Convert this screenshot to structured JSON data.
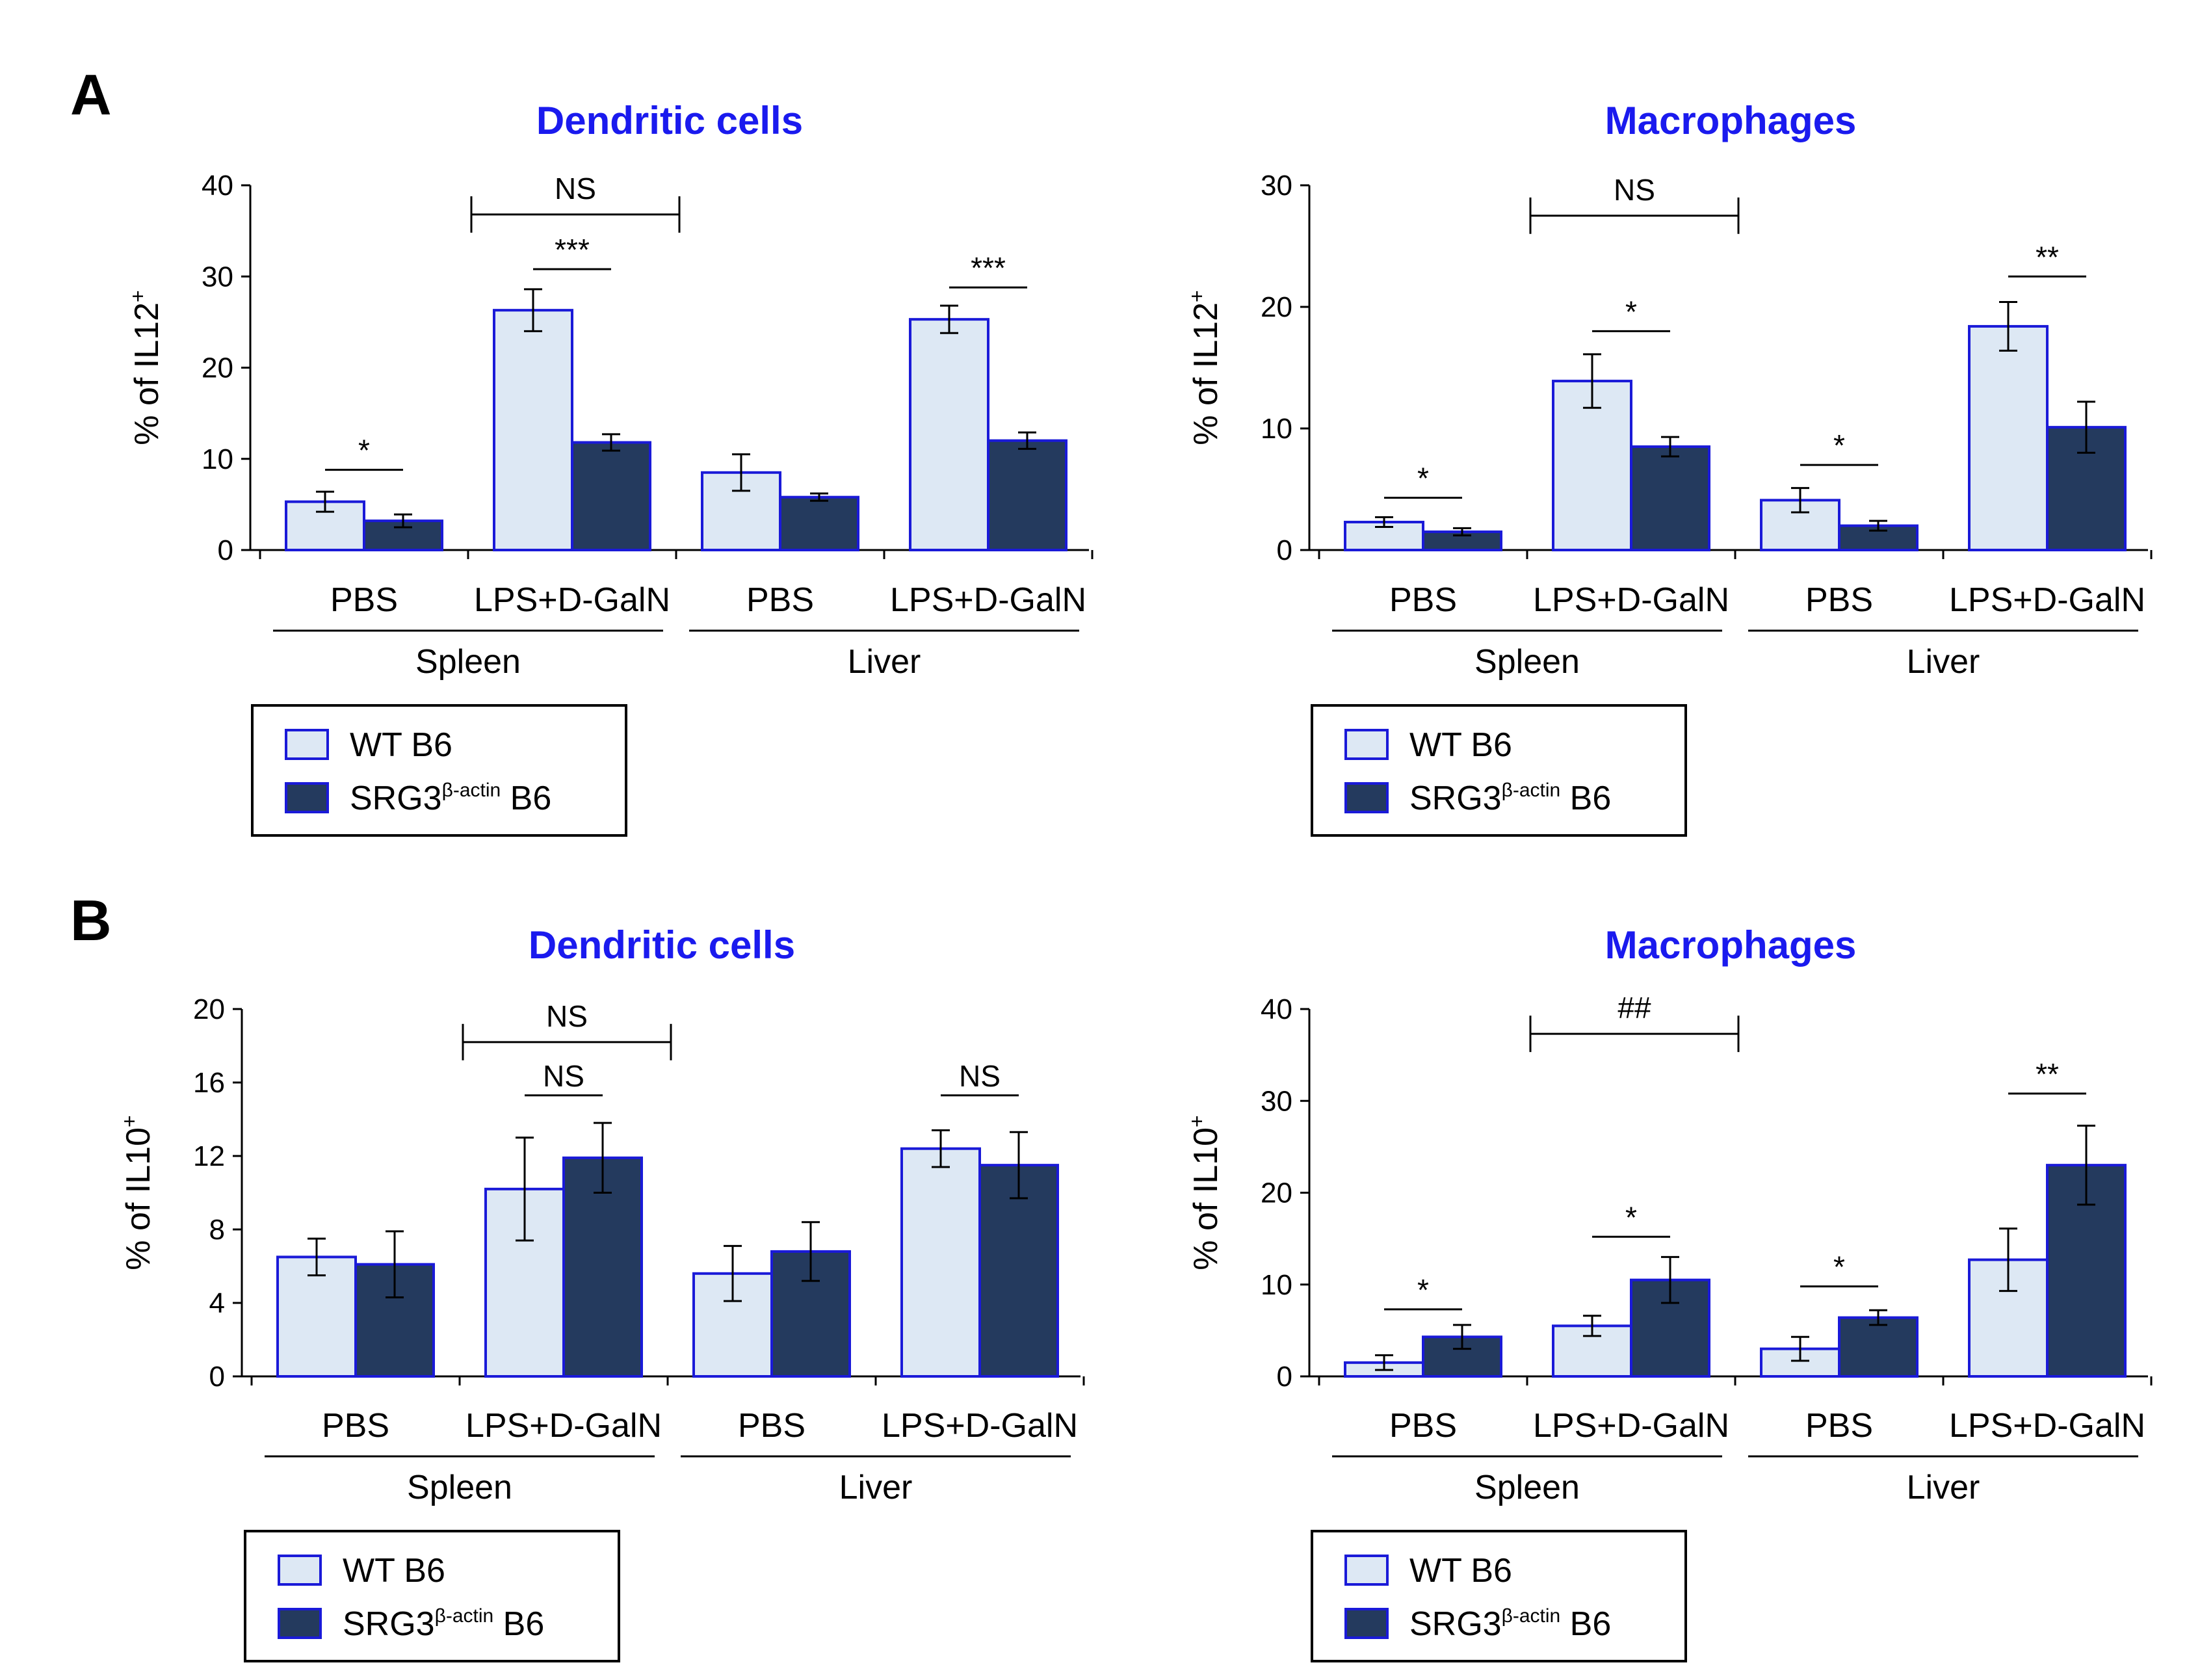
{
  "panels": [
    {
      "label": "A"
    },
    {
      "label": "B"
    }
  ],
  "legend": {
    "wt_label": "WT B6",
    "ko_base": "SRG3",
    "ko_sup": "β-actin",
    "ko_suffix": " B6"
  },
  "colors": {
    "wt_fill": "#dde8f4",
    "ko_fill": "#243a5e",
    "bar_edge": "#1a1ad8",
    "title": "#1a1aee"
  },
  "chart_data": [
    {
      "type": "bar",
      "panel": "A",
      "title": "Dendritic cells",
      "ylabel": "% of IL12+",
      "ylabel_base": "% of IL12",
      "ylabel_sup": "+",
      "ylim": [
        0,
        40
      ],
      "yticks": [
        0,
        10,
        20,
        30,
        40
      ],
      "categories": [
        "PBS",
        "LPS+D-GalN",
        "PBS",
        "LPS+D-GalN"
      ],
      "groups": [
        {
          "name": "Spleen",
          "categories": [
            0,
            1
          ]
        },
        {
          "name": "Liver",
          "categories": [
            2,
            3
          ]
        }
      ],
      "series": [
        {
          "name": "WT B6",
          "values": [
            5.3,
            26.3,
            8.5,
            25.3
          ],
          "errors": [
            1.1,
            2.3,
            2.0,
            1.5
          ]
        },
        {
          "name": "SRG3β-actin B6",
          "values": [
            3.2,
            11.8,
            5.8,
            12.0
          ],
          "errors": [
            0.7,
            0.9,
            0.4,
            0.9
          ]
        }
      ],
      "annotations": [
        {
          "text": "*",
          "type": "pair",
          "category": 0,
          "y": 8.8
        },
        {
          "text": "***",
          "type": "pair",
          "category": 1,
          "y": 30.8
        },
        {
          "text": "***",
          "type": "pair",
          "category": 3,
          "y": 28.8
        },
        {
          "text": "NS",
          "type": "bracket",
          "from": 1,
          "to": 2,
          "y": 36.8
        }
      ]
    },
    {
      "type": "bar",
      "panel": "A",
      "title": "Macrophages",
      "ylabel": "% of IL12+",
      "ylabel_base": "% of IL12",
      "ylabel_sup": "+",
      "ylim": [
        0,
        30
      ],
      "yticks": [
        0,
        10,
        20,
        30
      ],
      "categories": [
        "PBS",
        "LPS+D-GalN",
        "PBS",
        "LPS+D-GalN"
      ],
      "groups": [
        {
          "name": "Spleen",
          "categories": [
            0,
            1
          ]
        },
        {
          "name": "Liver",
          "categories": [
            2,
            3
          ]
        }
      ],
      "series": [
        {
          "name": "WT B6",
          "values": [
            2.3,
            13.9,
            4.1,
            18.4
          ],
          "errors": [
            0.4,
            2.2,
            1.0,
            2.0
          ]
        },
        {
          "name": "SRG3β-actin B6",
          "values": [
            1.5,
            8.5,
            2.0,
            10.1
          ],
          "errors": [
            0.3,
            0.8,
            0.4,
            2.1
          ]
        }
      ],
      "annotations": [
        {
          "text": "*",
          "type": "pair",
          "category": 0,
          "y": 4.3
        },
        {
          "text": "*",
          "type": "pair",
          "category": 1,
          "y": 18.0
        },
        {
          "text": "*",
          "type": "pair",
          "category": 2,
          "y": 7.0
        },
        {
          "text": "**",
          "type": "pair",
          "category": 3,
          "y": 22.5
        },
        {
          "text": "NS",
          "type": "bracket",
          "from": 1,
          "to": 2,
          "y": 27.5
        }
      ]
    },
    {
      "type": "bar",
      "panel": "B",
      "title": "Dendritic cells",
      "ylabel": "% of IL10+",
      "ylabel_base": "% of IL10",
      "ylabel_sup": "+",
      "ylim": [
        0,
        20
      ],
      "yticks": [
        0,
        4,
        8,
        12,
        16,
        20
      ],
      "categories": [
        "PBS",
        "LPS+D-GalN",
        "PBS",
        "LPS+D-GalN"
      ],
      "groups": [
        {
          "name": "Spleen",
          "categories": [
            0,
            1
          ]
        },
        {
          "name": "Liver",
          "categories": [
            2,
            3
          ]
        }
      ],
      "series": [
        {
          "name": "WT B6",
          "values": [
            6.5,
            10.2,
            5.6,
            12.4
          ],
          "errors": [
            1.0,
            2.8,
            1.5,
            1.0
          ]
        },
        {
          "name": "SRG3β-actin B6",
          "values": [
            6.1,
            11.9,
            6.8,
            11.5
          ],
          "errors": [
            1.8,
            1.9,
            1.6,
            1.8
          ]
        }
      ],
      "annotations": [
        {
          "text": "NS",
          "type": "pair",
          "category": 1,
          "y": 15.3
        },
        {
          "text": "NS",
          "type": "pair",
          "category": 3,
          "y": 15.3
        },
        {
          "text": "NS",
          "type": "bracket",
          "from": 1,
          "to": 2,
          "y": 18.2
        }
      ]
    },
    {
      "type": "bar",
      "panel": "B",
      "title": "Macrophages",
      "ylabel": "% of IL10+",
      "ylabel_base": "% of IL10",
      "ylabel_sup": "+",
      "ylim": [
        0,
        40
      ],
      "yticks": [
        0,
        10,
        20,
        30,
        40
      ],
      "categories": [
        "PBS",
        "LPS+D-GalN",
        "PBS",
        "LPS+D-GalN"
      ],
      "groups": [
        {
          "name": "Spleen",
          "categories": [
            0,
            1
          ]
        },
        {
          "name": "Liver",
          "categories": [
            2,
            3
          ]
        }
      ],
      "series": [
        {
          "name": "WT B6",
          "values": [
            1.5,
            5.5,
            3.0,
            12.7
          ],
          "errors": [
            0.8,
            1.1,
            1.3,
            3.4
          ]
        },
        {
          "name": "SRG3β-actin B6",
          "values": [
            4.3,
            10.5,
            6.4,
            23.0
          ],
          "errors": [
            1.3,
            2.5,
            0.8,
            4.3
          ]
        }
      ],
      "annotations": [
        {
          "text": "*",
          "type": "pair",
          "category": 0,
          "y": 7.3
        },
        {
          "text": "*",
          "type": "pair",
          "category": 1,
          "y": 15.2
        },
        {
          "text": "*",
          "type": "pair",
          "category": 2,
          "y": 9.8
        },
        {
          "text": "**",
          "type": "pair",
          "category": 3,
          "y": 30.8
        },
        {
          "text": "##",
          "type": "bracket",
          "from": 1,
          "to": 2,
          "y": 37.3
        }
      ]
    }
  ]
}
